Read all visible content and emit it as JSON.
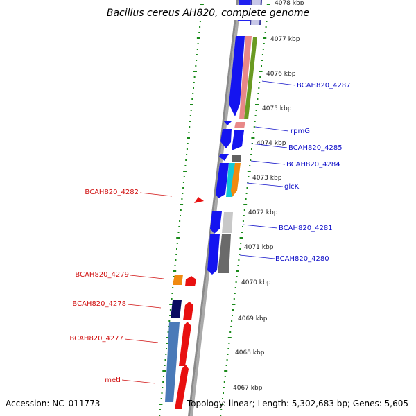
{
  "title": "Bacillus cereus AH820, complete genome",
  "footer": {
    "accession": "Accession: NC_011773",
    "summary": "Topology: linear; Length: 5,302,683 bp; Genes: 5,605"
  },
  "colors": {
    "axis": "#8a8a8a",
    "ticks": "#1a8a1a",
    "plus_label": "#1010c8",
    "minus_label": "#d01010"
  },
  "scale_labels": [
    "4078 kbp",
    "4077 kbp",
    "4076 kbp",
    "4075 kbp",
    "4074 kbp",
    "4073 kbp",
    "4072 kbp",
    "4071 kbp",
    "4070 kbp",
    "4069 kbp",
    "4068 kbp",
    "4067 kbp"
  ],
  "gene_labels_right": [
    "BCAH820_4287",
    "rpmG",
    "BCAH820_4285",
    "BCAH820_4284",
    "glcK",
    "BCAH820_4281",
    "BCAH820_4280"
  ],
  "gene_labels_left": [
    "BCAH820_4282",
    "BCAH820_4279",
    "BCAH820_4278",
    "BCAH820_4277",
    "metI"
  ]
}
